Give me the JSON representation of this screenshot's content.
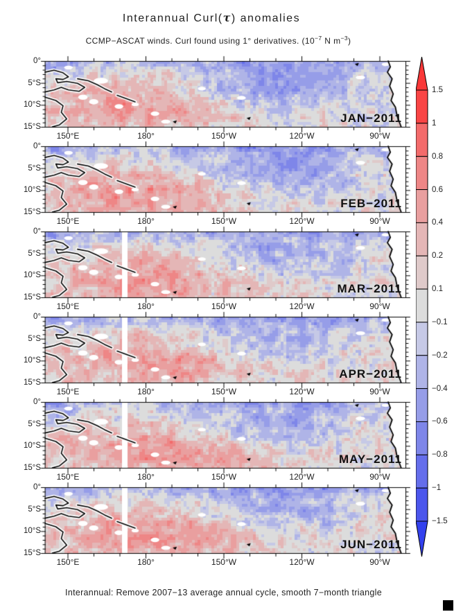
{
  "figure": {
    "title_pre": "Interannual Curl(",
    "title_tau": "τ",
    "title_post": ") anomalies",
    "subtitle_p1": "CCMP−ASCAT winds. Curl found using 1° derivatives. (10",
    "subtitle_e1": "−7",
    "subtitle_p2": " N m",
    "subtitle_e2": "−3",
    "subtitle_p3": ")",
    "caption": "Interannual: Remove 2007−13 average annual cycle, smooth 7−month triangle"
  },
  "axis": {
    "lat_labels": [
      "0°",
      "5°S",
      "10°S",
      "15°S"
    ],
    "lon_labels": [
      "150°E",
      "180°",
      "150°W",
      "120°W",
      "90°W"
    ]
  },
  "panels": [
    {
      "month_label": "JAN−2011",
      "gap": false,
      "seed": 11,
      "field": {
        "red": 0.52,
        "redC": 0.25,
        "redW": 0.26,
        "blue": 0.55
      }
    },
    {
      "month_label": "FEB−2011",
      "gap": false,
      "seed": 22,
      "field": {
        "red": 0.55,
        "redC": 0.26,
        "redW": 0.27,
        "blue": 0.52
      }
    },
    {
      "month_label": "MAR−2011",
      "gap": true,
      "seed": 33,
      "field": {
        "red": 0.53,
        "redC": 0.28,
        "redW": 0.28,
        "blue": 0.4
      }
    },
    {
      "month_label": "APR−2011",
      "gap": true,
      "seed": 44,
      "field": {
        "red": 0.5,
        "redC": 0.3,
        "redW": 0.28,
        "blue": 0.38
      }
    },
    {
      "month_label": "MAY−2011",
      "gap": true,
      "seed": 55,
      "field": {
        "red": 0.56,
        "redC": 0.33,
        "redW": 0.3,
        "blue": 0.42
      }
    },
    {
      "month_label": "JUN−2011",
      "gap": true,
      "seed": 66,
      "field": {
        "red": 0.58,
        "redC": 0.33,
        "redW": 0.3,
        "blue": 0.45
      }
    }
  ],
  "colorbar": {
    "labels": [
      "1.5",
      "1",
      "0.8",
      "0.6",
      "0.4",
      "0.2",
      "0.1",
      "−0.1",
      "−0.2",
      "−0.4",
      "−0.6",
      "−0.8",
      "−1",
      "−1.5"
    ],
    "segment_colors": [
      "#F94545",
      "#F36B6B",
      "#EE8686",
      "#E99F9F",
      "#E4B6B6",
      "#DFCACA",
      "#DCDCDC",
      "#C6C9E6",
      "#AFB4E7",
      "#969DE8",
      "#7E86E9",
      "#656EEB",
      "#4B56EC"
    ],
    "arrow_top_color": "#FA3838",
    "arrow_bottom_color": "#3341EE"
  },
  "overlays": {
    "coastlines": [
      {
        "name": "new-guinea-north-coast",
        "points": [
          [
            0.0,
            0.17
          ],
          [
            0.025,
            0.14
          ],
          [
            0.05,
            0.18
          ],
          [
            0.065,
            0.24
          ],
          [
            0.05,
            0.28
          ],
          [
            0.03,
            0.27
          ],
          [
            0.035,
            0.33
          ],
          [
            0.06,
            0.31
          ],
          [
            0.09,
            0.34
          ],
          [
            0.11,
            0.4
          ],
          [
            0.095,
            0.46
          ],
          [
            0.065,
            0.44
          ],
          [
            0.045,
            0.4
          ],
          [
            0.025,
            0.44
          ],
          [
            0.0,
            0.47
          ]
        ]
      },
      {
        "name": "new-guinea-south-coast",
        "points": [
          [
            0.0,
            0.55
          ],
          [
            0.03,
            0.6
          ],
          [
            0.05,
            0.68
          ],
          [
            0.045,
            0.78
          ],
          [
            0.06,
            0.88
          ],
          [
            0.04,
            0.97
          ],
          [
            0.02,
            1.0
          ]
        ]
      },
      {
        "name": "solomon-arc-1",
        "points": [
          [
            0.09,
            0.27
          ],
          [
            0.12,
            0.3
          ],
          [
            0.145,
            0.36
          ],
          [
            0.165,
            0.42
          ],
          [
            0.185,
            0.47
          ]
        ]
      },
      {
        "name": "solomon-arc-2",
        "points": [
          [
            0.2,
            0.52
          ],
          [
            0.225,
            0.57
          ],
          [
            0.25,
            0.62
          ]
        ]
      }
    ],
    "south_america_coast": [
      [
        0.952,
        0.0
      ],
      [
        0.958,
        0.09
      ],
      [
        0.95,
        0.17
      ],
      [
        0.963,
        0.27
      ],
      [
        0.956,
        0.38
      ],
      [
        0.966,
        0.5
      ],
      [
        0.96,
        0.6
      ],
      [
        0.972,
        0.7
      ],
      [
        0.977,
        0.84
      ],
      [
        0.988,
        1.0
      ]
    ],
    "white_islands": [
      [
        0.065,
        0.1,
        0.012,
        0.03
      ],
      [
        0.155,
        0.3,
        0.02,
        0.045
      ],
      [
        0.105,
        0.55,
        0.013,
        0.04
      ],
      [
        0.135,
        0.62,
        0.013,
        0.04
      ],
      [
        0.205,
        0.69,
        0.012,
        0.035
      ],
      [
        0.25,
        0.66,
        0.01,
        0.025
      ],
      [
        0.305,
        0.8,
        0.012,
        0.035
      ],
      [
        0.335,
        0.92,
        0.013,
        0.03
      ],
      [
        0.435,
        0.42,
        0.011,
        0.028
      ],
      [
        0.545,
        0.56,
        0.012,
        0.03
      ],
      [
        0.875,
        0.25,
        0.013,
        0.03
      ],
      [
        0.945,
        0.05,
        0.011,
        0.025
      ]
    ],
    "black_islands": [
      [
        0.36,
        0.93
      ],
      [
        0.565,
        0.875
      ],
      [
        0.865,
        0.055
      ]
    ]
  },
  "chart_data": {
    "type": "heatmap",
    "title": "Interannual Curl(τ) anomalies",
    "subtitle": "CCMP−ASCAT winds. Curl found using 1° derivatives. (10^−7 N m^−3)",
    "units": "10^−7 N m^−3",
    "panel_months": [
      "JAN−2011",
      "FEB−2011",
      "MAR−2011",
      "APR−2011",
      "MAY−2011",
      "JUN−2011"
    ],
    "x_axis": {
      "ticks": [
        "150°E",
        "180°",
        "150°W",
        "120°W",
        "90°W"
      ],
      "range": [
        "141°E",
        "80°W"
      ],
      "minor_tick_spacing_deg": 10
    },
    "y_axis": {
      "ticks": [
        "0°",
        "5°S",
        "10°S",
        "15°S"
      ],
      "range": [
        "0°",
        "15°S"
      ],
      "minor_tick_spacing_deg": 1
    },
    "color_levels": [
      -1.5,
      -1,
      -0.8,
      -0.6,
      -0.4,
      -0.2,
      -0.1,
      0.1,
      0.2,
      0.4,
      0.6,
      0.8,
      1,
      1.5
    ],
    "colorbar_position": "right",
    "caption": "Interannual: Remove 2007−13 average annual cycle, smooth 7−month triangle",
    "pattern_summary": "Positive (red) wind-stress-curl anomalies over the southwest/central tropical South Pacific; negative (blue) anomalies along the equator and in the east-central basin toward South America; white vertical data-gap stripe near the dateline in the MAR−JUN panels; land (New Guinea / Solomon Islands, South America) outlined in black."
  }
}
